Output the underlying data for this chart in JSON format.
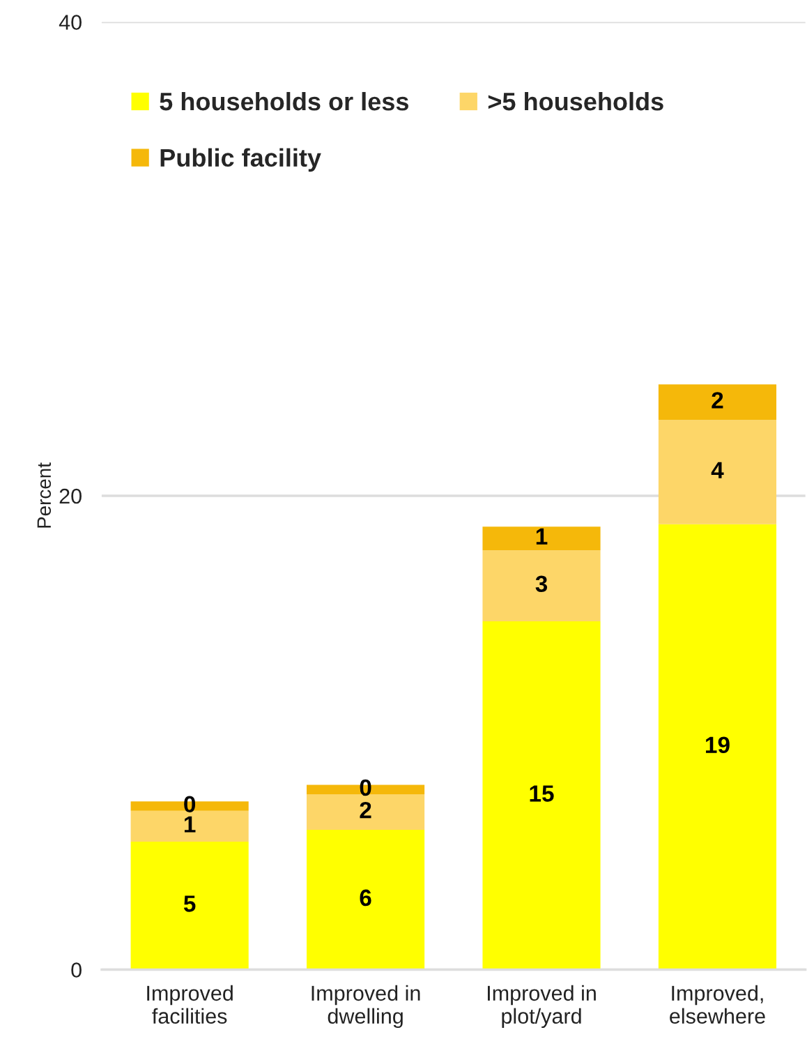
{
  "chart_data": {
    "type": "bar",
    "stacked": true,
    "ylabel": "Percent",
    "categories": [
      "Improved facilities",
      "Improved in dwelling",
      "Improved in plot/yard",
      "Improved, elsewhere"
    ],
    "series": [
      {
        "name": "5 households or less",
        "color": "#ffff00",
        "values": [
          5.4,
          5.9,
          14.7,
          18.8
        ],
        "value_labels": [
          "5",
          "6",
          "15",
          "19"
        ]
      },
      {
        "name": ">5 households",
        "color": "#fdd668",
        "values": [
          1.3,
          1.5,
          3.0,
          4.4
        ],
        "value_labels": [
          "1",
          "2",
          "3",
          "4"
        ]
      },
      {
        "name": "Public facility",
        "color": "#f5b80a",
        "values": [
          0.4,
          0.4,
          1.0,
          1.5
        ],
        "value_labels": [
          "0",
          "0",
          "1",
          "2"
        ]
      }
    ],
    "ylim": [
      0,
      40
    ],
    "yticks": [
      0,
      20,
      40
    ],
    "grid": "y",
    "legend": "top left"
  }
}
